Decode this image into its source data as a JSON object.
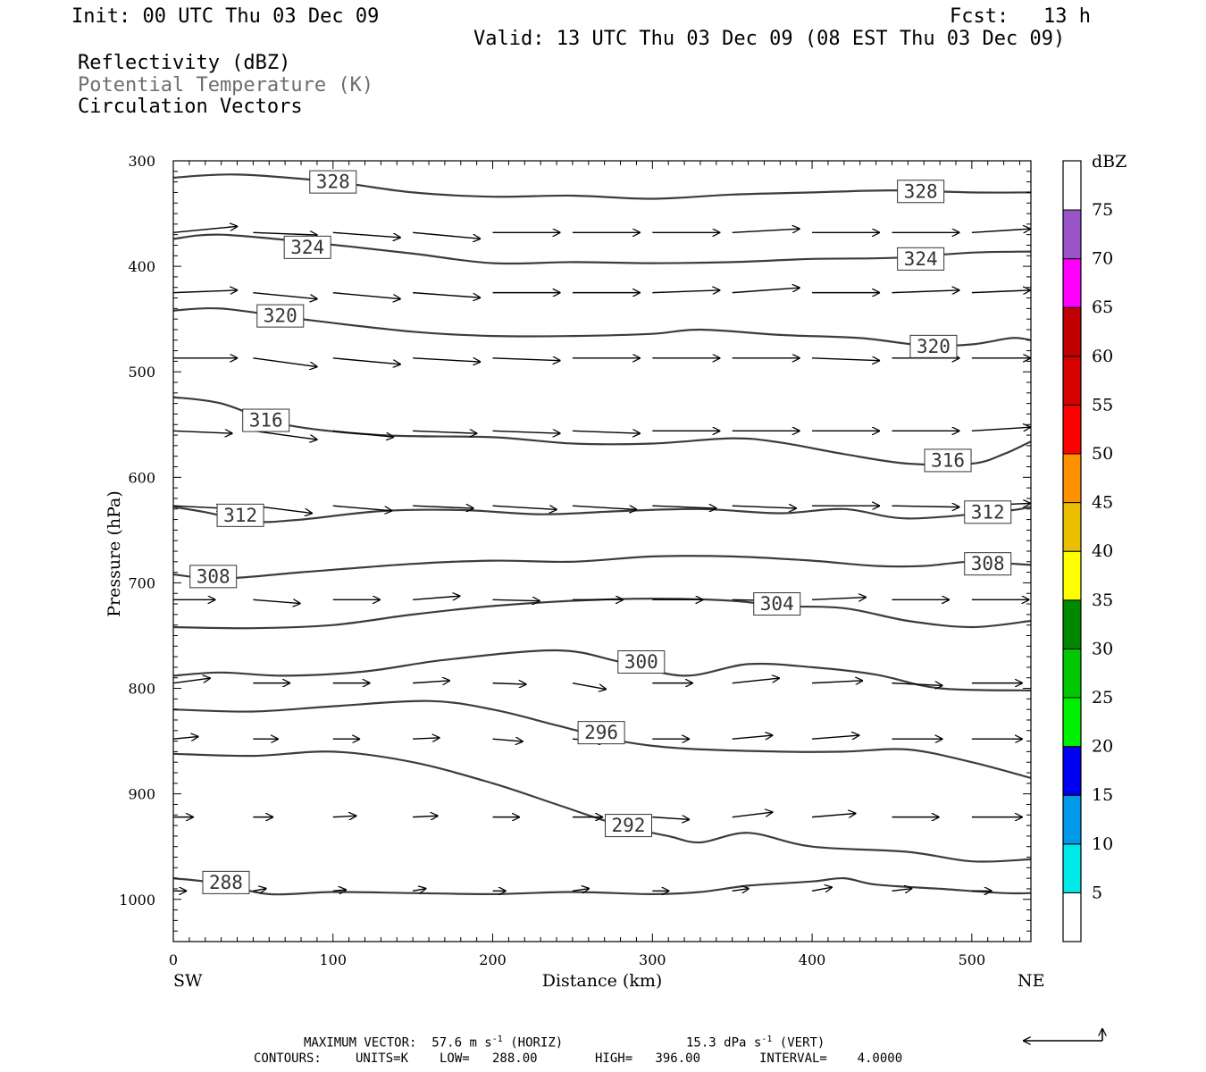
{
  "header": {
    "init": "Init: 00 UTC Thu 03 Dec 09",
    "fcst_label": "Fcst:",
    "fcst_value": "13 h",
    "valid": "Valid: 13 UTC Thu 03 Dec 09 (08 EST Thu 03 Dec 09)",
    "fields": [
      "Reflectivity (dBZ)",
      "Potential Temperature (K)",
      "Circulation Vectors"
    ]
  },
  "footer": {
    "max_vector_label": "MAXIMUM VECTOR:",
    "horiz_value": "57.6 m s",
    "horiz_exp": "-1",
    "horiz_tag": "(HORIZ)",
    "vert_value": "15.3 dPa s",
    "vert_exp": "-1",
    "vert_tag": "(VERT)",
    "contours_label": "CONTOURS:",
    "units": "UNITS=K",
    "low": "LOW=   288.00",
    "high": "HIGH=   396.00",
    "interval": "INTERVAL=    4.0000"
  },
  "colors": {
    "contour": "#3c3c3c",
    "vector": "#000000",
    "frame": "#000000",
    "grey_text": "#6e6e6e"
  },
  "chart_data": {
    "type": "cross-section",
    "xlabel": "Distance (km)",
    "ylabel": "Pressure (hPa)",
    "x_left_label": "SW",
    "x_right_label": "NE",
    "xlim": [
      0,
      537
    ],
    "ylim": [
      300,
      1040
    ],
    "x_ticks": [
      0,
      100,
      200,
      300,
      400,
      500
    ],
    "y_ticks": [
      300,
      400,
      500,
      600,
      700,
      800,
      900,
      1000
    ],
    "contours": [
      {
        "value": 328,
        "x": [
          0,
          40,
          100,
          150,
          200,
          250,
          300,
          350,
          400,
          450,
          500,
          537
        ],
        "p": [
          316,
          313,
          320,
          330,
          334,
          333,
          336,
          332,
          330,
          328,
          330,
          330
        ]
      },
      {
        "value": 324,
        "x": [
          0,
          30,
          90,
          150,
          200,
          250,
          300,
          350,
          400,
          450,
          500,
          537
        ],
        "p": [
          374,
          370,
          378,
          388,
          397,
          396,
          397,
          396,
          393,
          392,
          387,
          386
        ]
      },
      {
        "value": 320,
        "x": [
          0,
          30,
          80,
          150,
          200,
          250,
          300,
          330,
          380,
          430,
          470,
          500,
          525,
          537
        ],
        "p": [
          442,
          440,
          450,
          462,
          466,
          466,
          464,
          460,
          465,
          468,
          475,
          474,
          468,
          470
        ]
      },
      {
        "value": 316,
        "x": [
          0,
          30,
          70,
          130,
          200,
          250,
          300,
          350,
          380,
          420,
          460,
          500,
          520,
          537
        ],
        "p": [
          524,
          530,
          550,
          560,
          562,
          568,
          568,
          563,
          567,
          578,
          587,
          587,
          578,
          566
        ]
      },
      {
        "value": 312,
        "x": [
          0,
          20,
          50,
          80,
          130,
          180,
          230,
          280,
          330,
          380,
          420,
          460,
          520,
          537
        ],
        "p": [
          628,
          633,
          642,
          640,
          632,
          631,
          635,
          632,
          630,
          634,
          630,
          639,
          632,
          628
        ]
      },
      {
        "value": 308,
        "x": [
          0,
          30,
          80,
          150,
          200,
          250,
          300,
          350,
          400,
          440,
          470,
          500,
          537
        ],
        "p": [
          692,
          696,
          690,
          682,
          679,
          680,
          675,
          675,
          679,
          684,
          684,
          680,
          683
        ]
      },
      {
        "value": 304,
        "x": [
          0,
          50,
          100,
          150,
          200,
          250,
          300,
          350,
          380,
          420,
          460,
          500,
          537
        ],
        "p": [
          742,
          743,
          740,
          730,
          722,
          717,
          715,
          717,
          722,
          724,
          736,
          742,
          736
        ]
      },
      {
        "value": 300,
        "x": [
          0,
          30,
          70,
          120,
          170,
          240,
          280,
          320,
          360,
          400,
          440,
          480,
          537
        ],
        "p": [
          788,
          785,
          788,
          784,
          773,
          764,
          775,
          788,
          777,
          780,
          787,
          800,
          802
        ]
      },
      {
        "value": 296,
        "x": [
          0,
          50,
          100,
          160,
          200,
          240,
          280,
          320,
          380,
          420,
          460,
          500,
          537
        ],
        "p": [
          820,
          822,
          817,
          812,
          820,
          835,
          850,
          857,
          860,
          860,
          858,
          870,
          885
        ]
      },
      {
        "value": 292,
        "x": [
          0,
          50,
          100,
          150,
          200,
          240,
          280,
          310,
          330,
          360,
          400,
          460,
          500,
          537
        ],
        "p": [
          862,
          864,
          860,
          870,
          890,
          910,
          930,
          940,
          946,
          937,
          950,
          955,
          964,
          962
        ]
      },
      {
        "value": 288,
        "x": [
          0,
          30,
          60,
          100,
          150,
          200,
          250,
          300,
          330,
          360,
          400,
          420,
          440,
          480,
          520,
          537
        ],
        "p": [
          980,
          985,
          995,
          993,
          994,
          995,
          993,
          995,
          993,
          987,
          983,
          980,
          986,
          990,
          994,
          994
        ]
      }
    ],
    "contour_labels": [
      {
        "value": "328",
        "x": 100,
        "p": 320
      },
      {
        "value": "328",
        "x": 468,
        "p": 329
      },
      {
        "value": "324",
        "x": 84,
        "p": 382
      },
      {
        "value": "324",
        "x": 468,
        "p": 393
      },
      {
        "value": "320",
        "x": 67,
        "p": 447
      },
      {
        "value": "320",
        "x": 476,
        "p": 476
      },
      {
        "value": "316",
        "x": 58,
        "p": 546
      },
      {
        "value": "316",
        "x": 485,
        "p": 584
      },
      {
        "value": "312",
        "x": 42,
        "p": 636
      },
      {
        "value": "312",
        "x": 510,
        "p": 633
      },
      {
        "value": "308",
        "x": 25,
        "p": 694
      },
      {
        "value": "308",
        "x": 510,
        "p": 682
      },
      {
        "value": "304",
        "x": 378,
        "p": 720
      },
      {
        "value": "300",
        "x": 293,
        "p": 775
      },
      {
        "value": "296",
        "x": 268,
        "p": 842
      },
      {
        "value": "292",
        "x": 285,
        "p": 930
      },
      {
        "value": "288",
        "x": 33,
        "p": 984
      }
    ],
    "vector_rows": [
      {
        "p": 368,
        "dx": [
          38,
          38,
          40,
          40,
          40,
          40,
          40,
          40,
          40,
          40,
          40
        ],
        "dp": [
          -5,
          2,
          4,
          5,
          0,
          0,
          0,
          -3,
          0,
          0,
          -3
        ]
      },
      {
        "p": 425,
        "dx": [
          38,
          38,
          40,
          40,
          40,
          40,
          40,
          40,
          40,
          40,
          40
        ],
        "dp": [
          -2,
          5,
          5,
          4,
          0,
          0,
          -2,
          -4,
          0,
          -2,
          -2
        ]
      },
      {
        "p": 487,
        "dx": [
          38,
          38,
          40,
          40,
          40,
          40,
          40,
          40,
          40,
          40,
          40
        ],
        "dp": [
          0,
          7,
          5,
          3,
          2,
          0,
          0,
          0,
          2,
          0,
          0
        ]
      },
      {
        "p": 556,
        "dx": [
          35,
          38,
          36,
          38,
          40,
          40,
          40,
          40,
          40,
          40,
          40
        ],
        "dp": [
          2,
          7,
          5,
          2,
          2,
          2,
          0,
          0,
          0,
          0,
          -3
        ]
      },
      {
        "p": 627,
        "dx": [
          30,
          35,
          35,
          36,
          38,
          38,
          38,
          38,
          40,
          40,
          40
        ],
        "dp": [
          2,
          6,
          4,
          2,
          3,
          3,
          2,
          2,
          0,
          1,
          -2
        ]
      },
      {
        "p": 716,
        "dx": [
          25,
          28,
          28,
          28,
          28,
          30,
          30,
          32,
          32,
          34,
          34
        ],
        "dp": [
          0,
          3,
          0,
          -3,
          1,
          0,
          0,
          1,
          -2,
          0,
          0
        ]
      },
      {
        "p": 795,
        "dx": [
          22,
          22,
          22,
          22,
          20,
          20,
          24,
          28,
          30,
          30,
          30
        ],
        "dp": [
          -4,
          0,
          0,
          -2,
          1,
          5,
          0,
          -4,
          -2,
          2,
          0
        ]
      },
      {
        "p": 848,
        "dx": [
          15,
          15,
          16,
          16,
          18,
          20,
          22,
          24,
          28,
          30,
          30
        ],
        "dp": [
          -2,
          0,
          0,
          -1,
          2,
          2,
          0,
          -3,
          -3,
          0,
          0
        ]
      },
      {
        "p": 922,
        "dx": [
          12,
          12,
          14,
          15,
          16,
          18,
          22,
          24,
          26,
          28,
          30
        ],
        "dp": [
          0,
          0,
          -1,
          -1,
          0,
          0,
          2,
          -4,
          -3,
          0,
          0
        ]
      },
      {
        "p": 992,
        "dx": [
          8,
          8,
          8,
          8,
          8,
          10,
          10,
          10,
          12,
          12,
          12
        ],
        "dp": [
          0,
          -2,
          -1,
          -2,
          0,
          -2,
          0,
          -2,
          -3,
          -2,
          0
        ]
      }
    ],
    "colorbar": {
      "title": "dBZ",
      "bins": [
        {
          "label": "5",
          "color": "#00e8e8"
        },
        {
          "label": "10",
          "color": "#0098e8"
        },
        {
          "label": "15",
          "color": "#0000f0"
        },
        {
          "label": "20",
          "color": "#00f000"
        },
        {
          "label": "25",
          "color": "#00c800"
        },
        {
          "label": "30",
          "color": "#008800"
        },
        {
          "label": "35",
          "color": "#ffff00"
        },
        {
          "label": "40",
          "color": "#e8c000"
        },
        {
          "label": "45",
          "color": "#ff9000"
        },
        {
          "label": "50",
          "color": "#ff0000"
        },
        {
          "label": "55",
          "color": "#d60000"
        },
        {
          "label": "60",
          "color": "#c00000"
        },
        {
          "label": "65",
          "color": "#ff00ff"
        },
        {
          "label": "70",
          "color": "#9955c8"
        },
        {
          "label": "75",
          "color": "#ffffff"
        }
      ]
    }
  }
}
